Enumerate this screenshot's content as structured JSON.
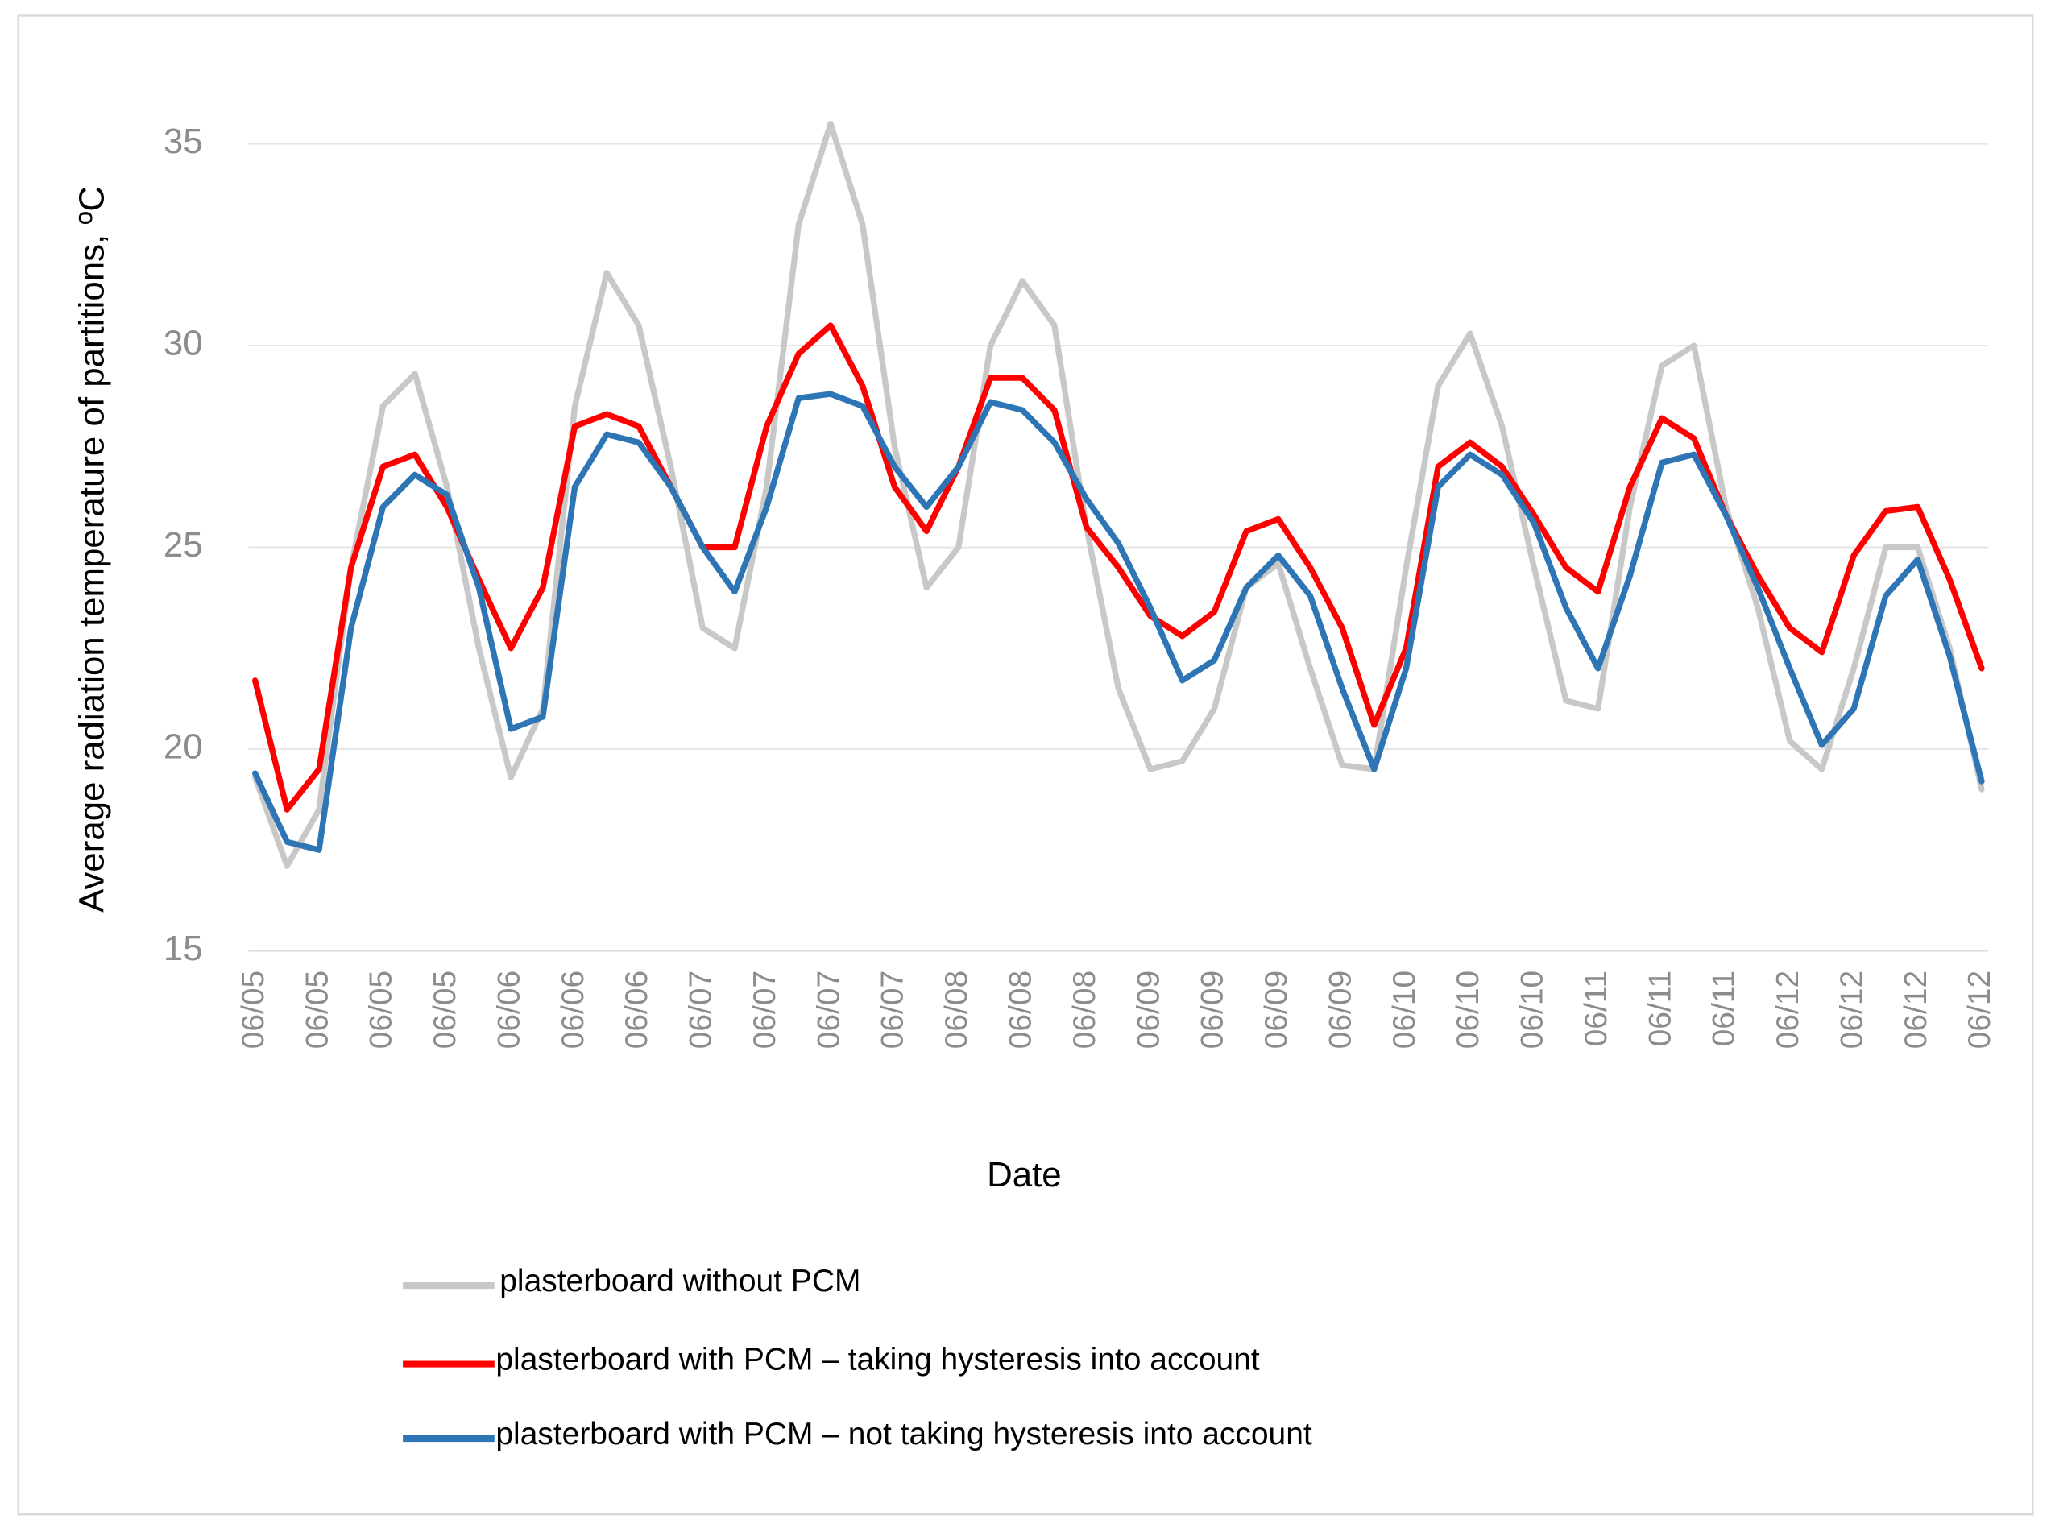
{
  "chart_data": {
    "type": "line",
    "y_label": "Average radiation temperature of partitions, ºC",
    "x_label": "Date",
    "categories": [
      "06/05",
      null,
      "06/05",
      null,
      "06/05",
      null,
      "06/05",
      null,
      "06/06",
      null,
      "06/06",
      null,
      "06/06",
      null,
      "06/07",
      null,
      "06/07",
      null,
      "06/07",
      null,
      "06/07",
      null,
      "06/08",
      null,
      "06/08",
      null,
      "06/08",
      null,
      "06/09",
      null,
      "06/09",
      null,
      "06/09",
      null,
      "06/09",
      null,
      "06/10",
      null,
      "06/10",
      null,
      "06/10",
      null,
      "06/11",
      null,
      "06/11",
      null,
      "06/11",
      null,
      "06/12",
      null,
      "06/12",
      null,
      "06/12",
      null,
      "06/12"
    ],
    "series": [
      {
        "name": "plasterboard without PCM",
        "color": "#c8c8c8",
        "values": [
          19.3,
          17.1,
          18.5,
          24.5,
          28.5,
          29.3,
          26.5,
          22.5,
          19.3,
          21,
          28.5,
          31.8,
          30.5,
          27,
          23,
          22.5,
          26.5,
          33,
          35.5,
          33,
          27.5,
          24,
          25,
          30,
          31.6,
          30.5,
          25.5,
          21.5,
          19.5,
          19.7,
          21,
          24,
          24.6,
          22,
          19.6,
          19.5,
          24.5,
          29,
          30.3,
          28,
          24.5,
          21.2,
          21,
          26,
          29.5,
          30,
          26,
          23.5,
          20.2,
          19.5,
          22,
          25,
          25,
          22.5,
          19
        ]
      },
      {
        "name": "plasterboard with PCM – taking hysteresis into account",
        "color": "#ff0000",
        "values": [
          21.7,
          18.5,
          19.5,
          24.5,
          27,
          27.3,
          26,
          24.2,
          22.5,
          24,
          28,
          28.3,
          28,
          26.5,
          25,
          25,
          28,
          29.8,
          30.5,
          29,
          26.5,
          25.4,
          27,
          29.2,
          29.2,
          28.4,
          25.5,
          24.5,
          23.3,
          22.8,
          23.4,
          25.4,
          25.7,
          24.5,
          23,
          20.6,
          22.5,
          27,
          27.6,
          27,
          25.8,
          24.5,
          23.9,
          26.5,
          28.2,
          27.7,
          25.8,
          24.3,
          23,
          22.4,
          24.8,
          25.9,
          26,
          24.2,
          22
        ]
      },
      {
        "name": "plasterboard with PCM – not taking hysteresis into account",
        "color": "#2e75b6",
        "values": [
          19.4,
          17.7,
          17.5,
          23,
          26,
          26.8,
          26.3,
          24,
          20.5,
          20.8,
          26.5,
          27.8,
          27.6,
          26.5,
          25,
          23.9,
          26,
          28.7,
          28.8,
          28.5,
          27,
          26,
          27,
          28.6,
          28.4,
          27.6,
          26.2,
          25.1,
          23.5,
          21.7,
          22.2,
          24,
          24.8,
          23.8,
          21.5,
          19.5,
          22,
          26.5,
          27.3,
          26.8,
          25.6,
          23.5,
          22,
          24.3,
          27.1,
          27.3,
          25.8,
          24,
          22,
          20.1,
          21,
          23.8,
          24.7,
          22.3,
          19.2
        ]
      }
    ],
    "ylim": [
      15,
      37
    ],
    "yticks": [
      15,
      20,
      25,
      30,
      35
    ],
    "grid": true
  }
}
